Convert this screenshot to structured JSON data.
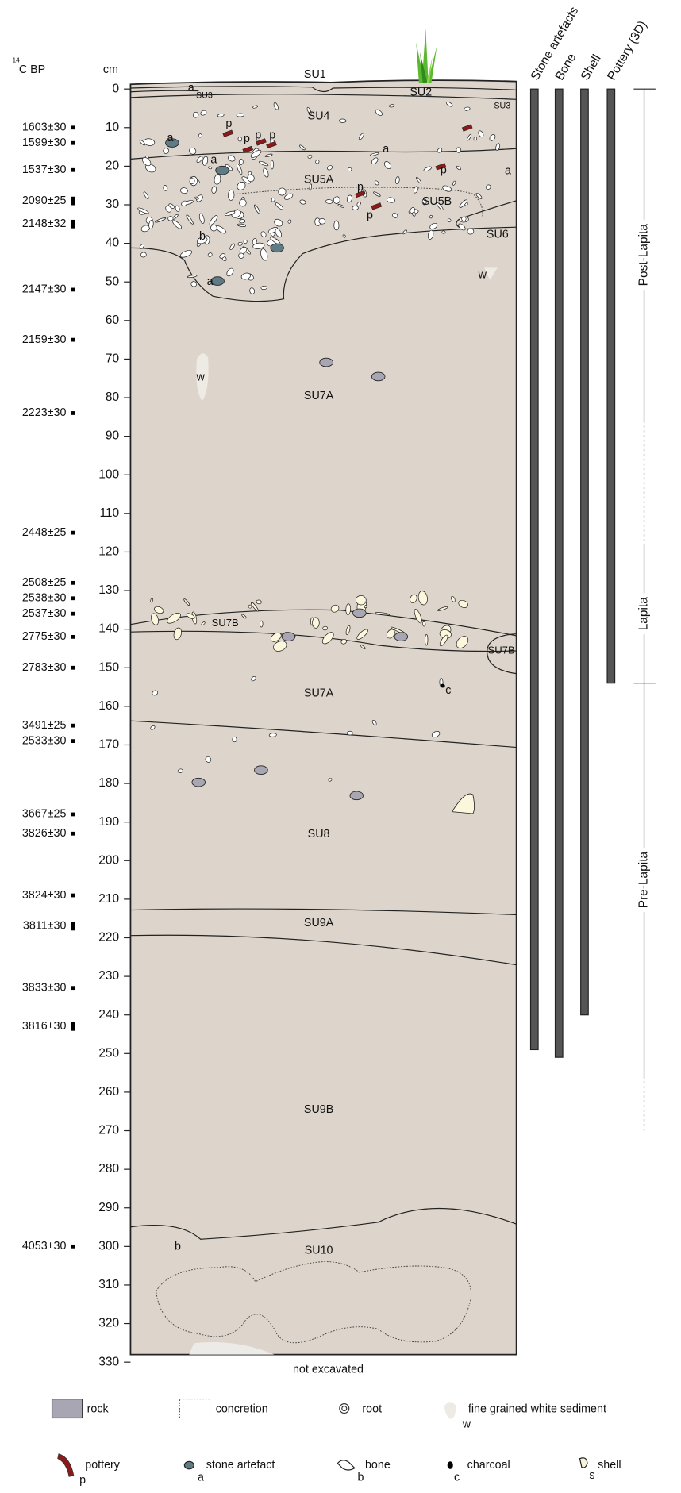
{
  "header": {
    "radiocarbon_sup": "14",
    "radiocarbon_label": "C BP",
    "depth_unit": "cm"
  },
  "depth_axis": {
    "min": 0,
    "max": 330,
    "ticks": [
      0,
      10,
      20,
      30,
      40,
      50,
      60,
      70,
      80,
      90,
      100,
      110,
      120,
      130,
      140,
      150,
      160,
      170,
      180,
      190,
      200,
      210,
      220,
      230,
      240,
      250,
      260,
      270,
      280,
      290,
      300,
      310,
      320,
      330
    ]
  },
  "radiocarbon_dates": [
    {
      "label": "1603±30",
      "depth": 10
    },
    {
      "label": "1599±30",
      "depth": 14
    },
    {
      "label": "1537±30",
      "depth": 21
    },
    {
      "label": "2090±25",
      "depth": 29,
      "marker": "bar"
    },
    {
      "label": "2148±32",
      "depth": 35,
      "marker": "bar"
    },
    {
      "label": "2147±30",
      "depth": 52
    },
    {
      "label": "2159±30",
      "depth": 65
    },
    {
      "label": "2223±30",
      "depth": 84
    },
    {
      "label": "2448±25",
      "depth": 115
    },
    {
      "label": "2508±25",
      "depth": 128
    },
    {
      "label": "2538±30",
      "depth": 132
    },
    {
      "label": "2537±30",
      "depth": 136
    },
    {
      "label": "2775±30",
      "depth": 142
    },
    {
      "label": "2783±30",
      "depth": 150
    },
    {
      "label": "3491±25",
      "depth": 165
    },
    {
      "label": "2533±30",
      "depth": 169
    },
    {
      "label": "3667±25",
      "depth": 188
    },
    {
      "label": "3826±30",
      "depth": 193
    },
    {
      "label": "3824±30",
      "depth": 209
    },
    {
      "label": "3811±30",
      "depth": 217,
      "marker": "bar"
    },
    {
      "label": "3833±30",
      "depth": 233
    },
    {
      "label": "3816±30",
      "depth": 243,
      "marker": "bar"
    },
    {
      "label": "4053±30",
      "depth": 300
    }
  ],
  "units": [
    "SU1",
    "SU2",
    "SU3",
    "SU3",
    "SU4",
    "SU5A",
    "SU5B",
    "SU6",
    "SU7A",
    "SU7B",
    "SU7B",
    "SU7A",
    "SU8",
    "SU9A",
    "SU9B",
    "SU10"
  ],
  "annotations": [
    "a",
    "a",
    "p",
    "p",
    "p",
    "p",
    "a",
    "a",
    "p",
    "a",
    "p",
    "p",
    "b",
    "a",
    "w",
    "w",
    "c",
    "b"
  ],
  "section_note": "not excavated",
  "finds_columns": [
    {
      "label": "Stone artefacts",
      "from": 0,
      "to": 249
    },
    {
      "label": "Bone",
      "from": 0,
      "to": 251
    },
    {
      "label": "Shell",
      "from": 0,
      "to": 240
    },
    {
      "label": "Pottery (3D)",
      "from": 0,
      "to": 154
    }
  ],
  "periods": [
    {
      "label": "Post-Lapita",
      "from": 0,
      "to": 86
    },
    {
      "label": "Lapita",
      "from": 118,
      "to": 154
    },
    {
      "label": "Pre-Lapita",
      "from": 154,
      "to": 256
    }
  ],
  "legend": [
    {
      "label": "rock"
    },
    {
      "label": "concretion"
    },
    {
      "label": "root"
    },
    {
      "label": "fine grained white sediment",
      "letter": "w"
    },
    {
      "label": "pottery",
      "letter": "p"
    },
    {
      "label": "stone artefact",
      "letter": "a"
    },
    {
      "label": "bone",
      "letter": "b"
    },
    {
      "label": "charcoal",
      "letter": "c"
    },
    {
      "label": "shell",
      "letter": "s"
    }
  ]
}
